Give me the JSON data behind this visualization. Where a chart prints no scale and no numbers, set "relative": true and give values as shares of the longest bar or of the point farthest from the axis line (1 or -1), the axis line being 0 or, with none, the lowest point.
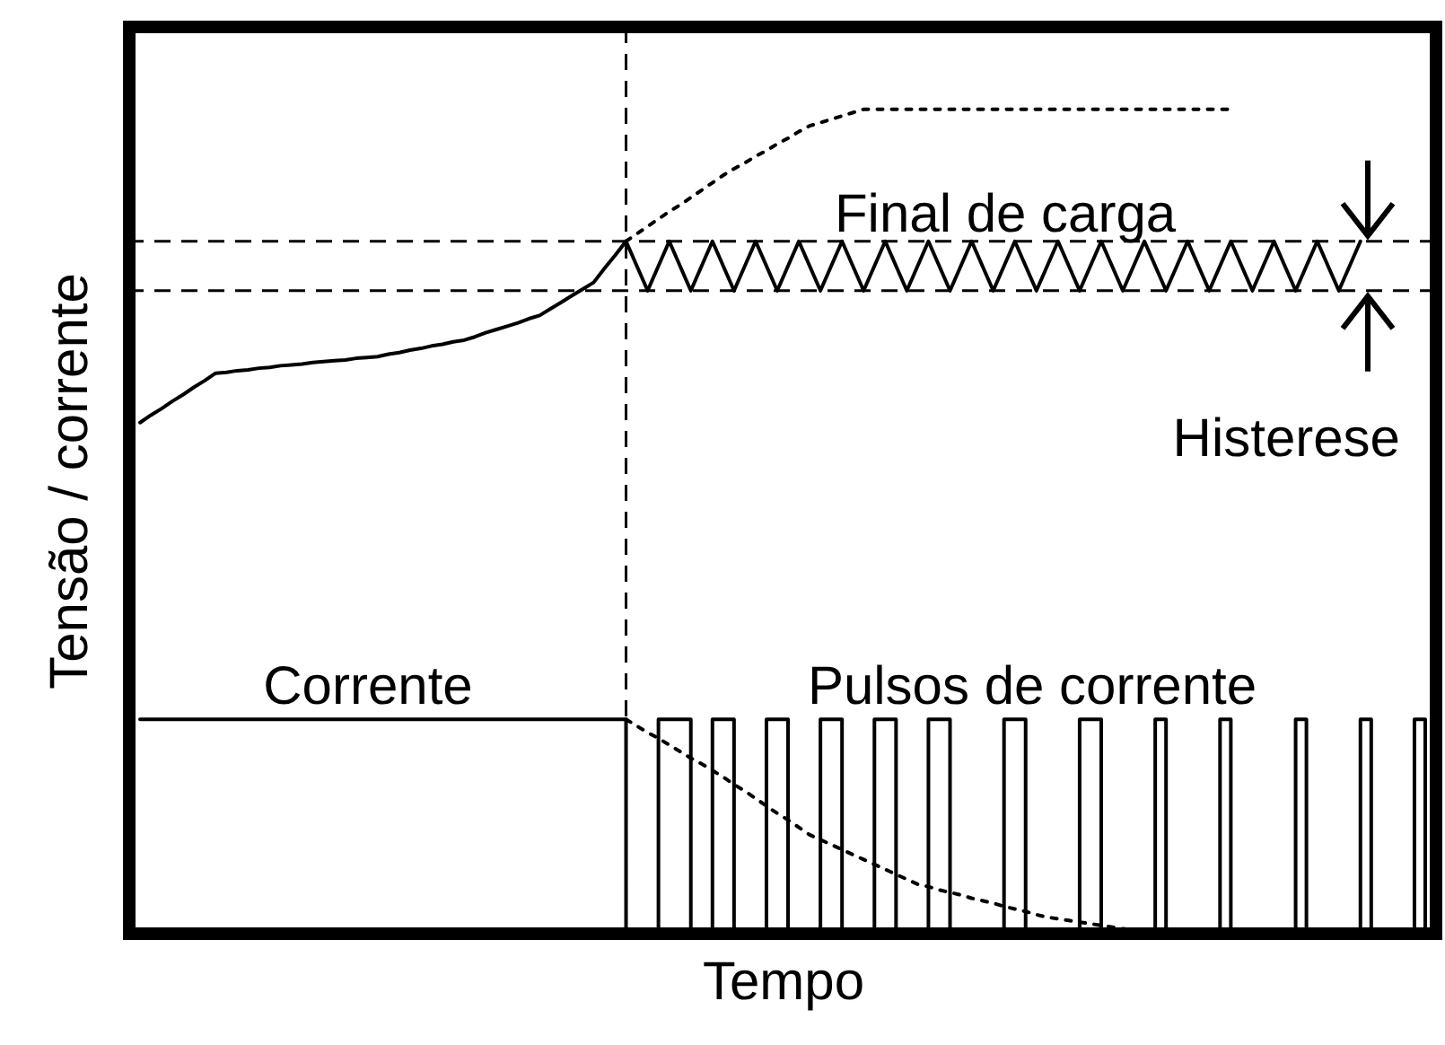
{
  "chart_data": {
    "type": "line",
    "relative": true,
    "xlabel": "Tempo",
    "ylabel": "Tensão / corrente",
    "categories": [
      null,
      null,
      null,
      null,
      null,
      null,
      null,
      null,
      null,
      null,
      null,
      null,
      null,
      null,
      null,
      null,
      null,
      null,
      null,
      null,
      null,
      null,
      null,
      null,
      null,
      null,
      null,
      null,
      null,
      null,
      null,
      null,
      null,
      null,
      null,
      null,
      null,
      null,
      null,
      null,
      null,
      null,
      null,
      null,
      null,
      null,
      null,
      null,
      null,
      null,
      null,
      null,
      null,
      null,
      null,
      null,
      null,
      null,
      null,
      null,
      null,
      null,
      null,
      null,
      null,
      null,
      null,
      null,
      null,
      null,
      null,
      null,
      null,
      null,
      null,
      null,
      null,
      null,
      null,
      null,
      null,
      null,
      null,
      null,
      null,
      null,
      null,
      null,
      null,
      null,
      null,
      null,
      null,
      null,
      null,
      null,
      null,
      null,
      null,
      null,
      null,
      null,
      null,
      null,
      null,
      null,
      null,
      null,
      null,
      null,
      null,
      null,
      null,
      null,
      null,
      null,
      null,
      null,
      null,
      null,
      null,
      null
    ],
    "series": [
      {
        "color": "#000000",
        "line_style": "solid",
        "values": [
          null,
          0.62,
          0.629,
          0.637,
          0.646,
          0.654,
          0.663,
          0.671,
          0.68,
          0.681,
          0.683,
          0.684,
          0.686,
          0.687,
          0.689,
          0.69,
          0.691,
          0.693,
          0.694,
          0.695,
          0.696,
          0.698,
          0.699,
          0.7,
          0.703,
          0.705,
          0.708,
          0.71,
          0.713,
          0.715,
          0.718,
          0.72,
          0.724,
          0.729,
          0.733,
          0.737,
          0.741,
          0.746,
          0.75,
          0.758,
          0.766,
          0.774,
          0.782,
          0.79,
          0.807,
          0.823,
          0.84,
          0.81,
          0.78,
          0.81,
          0.84,
          0.81,
          0.78,
          0.81,
          0.84,
          0.81,
          0.78,
          0.81,
          0.84,
          0.81,
          0.78,
          0.81,
          0.84,
          0.81,
          0.78,
          0.81,
          0.84,
          0.81,
          0.78,
          0.81,
          0.84,
          0.81,
          0.78,
          0.81,
          0.84,
          0.81,
          0.78,
          0.81,
          0.84,
          0.81,
          0.78,
          0.81,
          0.84,
          0.81,
          0.78,
          0.81,
          0.84,
          0.81,
          0.78,
          0.81,
          0.84,
          0.81,
          0.78,
          0.81,
          0.84,
          0.81,
          0.78,
          0.81,
          0.84,
          0.81,
          0.78,
          0.81,
          0.84,
          0.81,
          0.78,
          0.81,
          0.84,
          0.81,
          0.78,
          0.81,
          0.84,
          0.81,
          0.78,
          0.81,
          0.84,
          null,
          null,
          null,
          null,
          null,
          null,
          null
        ]
      },
      {
        "color": "#000000",
        "line_style": "dotted",
        "values": [
          null,
          null,
          null,
          null,
          null,
          null,
          null,
          null,
          null,
          null,
          null,
          null,
          null,
          null,
          null,
          null,
          null,
          null,
          null,
          null,
          null,
          null,
          null,
          null,
          null,
          null,
          null,
          null,
          null,
          null,
          null,
          null,
          null,
          null,
          null,
          null,
          null,
          null,
          null,
          null,
          null,
          null,
          null,
          null,
          null,
          null,
          0.84,
          0.849,
          0.858,
          0.867,
          0.876,
          0.884,
          0.893,
          0.902,
          0.911,
          0.92,
          0.928,
          0.935,
          0.943,
          0.95,
          0.958,
          0.965,
          0.973,
          0.98,
          0.984,
          0.988,
          0.992,
          0.996,
          1,
          1,
          1,
          1,
          1,
          1,
          1,
          1,
          1,
          1,
          1,
          1,
          1,
          1,
          1,
          1,
          1,
          1,
          1,
          1,
          1,
          1,
          1,
          1,
          1,
          1,
          1,
          1,
          1,
          1,
          1,
          1,
          1,
          1,
          1,
          null,
          null,
          null,
          null,
          null,
          null,
          null,
          null,
          null,
          null,
          null,
          null,
          null,
          null,
          null,
          null,
          null,
          null,
          null
        ]
      },
      {
        "type": "step",
        "color": "#000000",
        "line_style": "solid",
        "values": [
          null,
          0.26,
          0.26,
          0.26,
          0.26,
          0.26,
          0.26,
          0.26,
          0.26,
          0.26,
          0.26,
          0.26,
          0.26,
          0.26,
          0.26,
          0.26,
          0.26,
          0.26,
          0.26,
          0.26,
          0.26,
          0.26,
          0.26,
          0.26,
          0.26,
          0.26,
          0.26,
          0.26,
          0.26,
          0.26,
          0.26,
          0.26,
          0.26,
          0.26,
          0.26,
          0.26,
          0.26,
          0.26,
          0.26,
          0.26,
          0.26,
          0.26,
          0.26,
          0.26,
          0.26,
          0.26,
          0,
          0,
          0,
          0.26,
          0.26,
          0.26,
          0,
          0,
          0.26,
          0.26,
          0,
          0,
          0,
          0.26,
          0.26,
          0,
          0,
          0,
          0.26,
          0.26,
          0,
          0,
          0,
          0.26,
          0.26,
          0,
          0,
          0,
          0.26,
          0.26,
          0,
          0,
          0,
          0,
          0,
          0.26,
          0.26,
          0,
          0,
          0,
          0,
          0,
          0.26,
          0.26,
          0,
          0,
          0,
          0,
          0,
          0.26,
          0,
          0,
          0,
          0,
          0,
          0.26,
          0,
          0,
          0,
          0,
          0,
          0,
          0.26,
          0,
          0,
          0,
          0,
          0,
          0.26,
          0,
          0,
          0,
          0,
          0.26,
          0,
          null
        ]
      },
      {
        "color": "#000000",
        "line_style": "dotted",
        "values": [
          null,
          null,
          null,
          null,
          null,
          null,
          null,
          null,
          null,
          null,
          null,
          null,
          null,
          null,
          null,
          null,
          null,
          null,
          null,
          null,
          null,
          null,
          null,
          null,
          null,
          null,
          null,
          null,
          null,
          null,
          null,
          null,
          null,
          null,
          null,
          null,
          null,
          null,
          null,
          null,
          null,
          null,
          null,
          null,
          null,
          null,
          0.26,
          0.252,
          0.244,
          0.237,
          0.229,
          0.221,
          0.213,
          0.206,
          0.198,
          0.19,
          0.181,
          0.173,
          0.164,
          0.155,
          0.146,
          0.138,
          0.129,
          0.12,
          0.114,
          0.108,
          0.102,
          0.096,
          0.09,
          0.084,
          0.078,
          0.072,
          0.066,
          0.06,
          0.057,
          0.053,
          0.05,
          0.047,
          0.043,
          0.04,
          0.037,
          0.033,
          0.03,
          0.027,
          0.023,
          0.02,
          0.018,
          0.016,
          0.014,
          0.012,
          0.01,
          0.008,
          0.006,
          0.004,
          0.002,
          0,
          null,
          null,
          null,
          null,
          null,
          null,
          null,
          null,
          null,
          null,
          null,
          null,
          null,
          null,
          null,
          null,
          null,
          null,
          null,
          null,
          null,
          null,
          null,
          null,
          null,
          null
        ]
      }
    ],
    "ref_lines": [
      {
        "axis": "y",
        "value": 0.84,
        "line_style": "dashed"
      },
      {
        "axis": "y",
        "value": 0.78,
        "line_style": "dashed"
      }
    ],
    "annotations": [
      "Final de carga",
      "Histerese",
      "Corrente",
      "Pulsos de corrente"
    ]
  }
}
